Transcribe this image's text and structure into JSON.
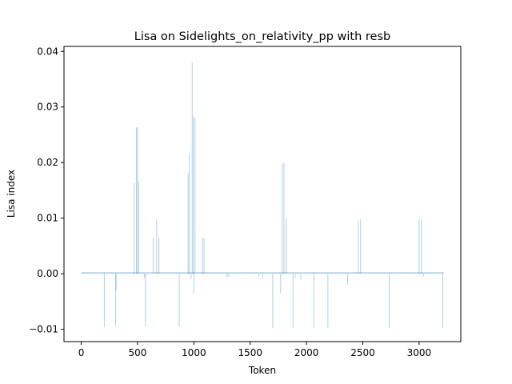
{
  "chart_data": {
    "type": "bar",
    "title": "Lisa on Sidelights_on_relativity_pp with resb",
    "xlabel": "Token",
    "ylabel": "Lisa index",
    "xlim": [
      -153,
      3370
    ],
    "ylim": [
      -0.0122,
      0.0409
    ],
    "xticks": [
      0,
      500,
      1000,
      1500,
      2000,
      2500,
      3000
    ],
    "xtick_labels": [
      "0",
      "500",
      "1000",
      "1500",
      "2000",
      "2500",
      "3000"
    ],
    "yticks": [
      -0.01,
      0.0,
      0.01,
      0.02,
      0.03,
      0.04
    ],
    "ytick_labels": [
      "−0.01",
      "0.00",
      "0.01",
      "0.02",
      "0.03",
      "0.04"
    ],
    "bar_color": "#1f77b4",
    "bar_opacity": 0.3,
    "grid": false,
    "x_range": [
      0,
      3220
    ],
    "baseline_noise": 0.0003,
    "bars": [
      {
        "x": 205,
        "y": -0.0095
      },
      {
        "x": 305,
        "y": -0.0095
      },
      {
        "x": 310,
        "y": -0.003
      },
      {
        "x": 470,
        "y": 0.0163
      },
      {
        "x": 490,
        "y": 0.0263
      },
      {
        "x": 500,
        "y": 0.0263
      },
      {
        "x": 510,
        "y": 0.0165
      },
      {
        "x": 560,
        "y": -0.0008
      },
      {
        "x": 570,
        "y": -0.0095
      },
      {
        "x": 640,
        "y": 0.0065
      },
      {
        "x": 670,
        "y": 0.0098
      },
      {
        "x": 690,
        "y": 0.0065
      },
      {
        "x": 870,
        "y": -0.0095
      },
      {
        "x": 950,
        "y": 0.018
      },
      {
        "x": 960,
        "y": 0.0217
      },
      {
        "x": 975,
        "y": -0.001
      },
      {
        "x": 985,
        "y": 0.038
      },
      {
        "x": 995,
        "y": 0.0283
      },
      {
        "x": 1000,
        "y": -0.0035
      },
      {
        "x": 1010,
        "y": 0.028
      },
      {
        "x": 1075,
        "y": 0.0065
      },
      {
        "x": 1090,
        "y": 0.0065
      },
      {
        "x": 1295,
        "y": -0.0008
      },
      {
        "x": 1310,
        "y": -0.0006
      },
      {
        "x": 1575,
        "y": -0.0004
      },
      {
        "x": 1610,
        "y": -0.0009
      },
      {
        "x": 1700,
        "y": -0.0098
      },
      {
        "x": 1770,
        "y": -0.0035
      },
      {
        "x": 1785,
        "y": 0.0198
      },
      {
        "x": 1800,
        "y": 0.02
      },
      {
        "x": 1820,
        "y": 0.01
      },
      {
        "x": 1880,
        "y": -0.0098
      },
      {
        "x": 1900,
        "y": -0.0008
      },
      {
        "x": 1950,
        "y": -0.001
      },
      {
        "x": 2065,
        "y": -0.0098
      },
      {
        "x": 2190,
        "y": -0.0098
      },
      {
        "x": 2365,
        "y": -0.002
      },
      {
        "x": 2460,
        "y": 0.0095
      },
      {
        "x": 2480,
        "y": 0.0098
      },
      {
        "x": 2735,
        "y": -0.0098
      },
      {
        "x": 3000,
        "y": 0.0098
      },
      {
        "x": 3020,
        "y": 0.0098
      },
      {
        "x": 3040,
        "y": -0.0004
      },
      {
        "x": 3210,
        "y": -0.0098
      }
    ]
  }
}
